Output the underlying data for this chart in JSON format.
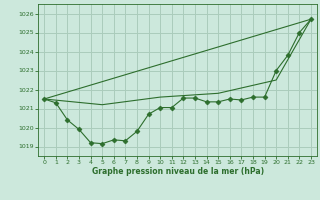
{
  "title": "Graphe pression niveau de la mer (hPa)",
  "bg_color": "#cce8dc",
  "grid_color": "#aaccbb",
  "line_color": "#2d6e2d",
  "xlim": [
    -0.5,
    23.5
  ],
  "ylim": [
    1018.5,
    1026.5
  ],
  "yticks": [
    1019,
    1020,
    1021,
    1022,
    1023,
    1024,
    1025,
    1026
  ],
  "xticks": [
    0,
    1,
    2,
    3,
    4,
    5,
    6,
    7,
    8,
    9,
    10,
    11,
    12,
    13,
    14,
    15,
    16,
    17,
    18,
    19,
    20,
    21,
    22,
    23
  ],
  "series": [
    {
      "x": [
        0,
        1,
        2,
        3,
        4,
        5,
        6,
        7,
        8,
        9,
        10,
        11,
        12,
        13,
        14,
        15,
        16,
        17,
        18,
        19,
        20,
        21,
        22,
        23
      ],
      "y": [
        1021.5,
        1021.3,
        1020.4,
        1019.9,
        1019.2,
        1019.15,
        1019.35,
        1019.3,
        1019.8,
        1020.7,
        1021.05,
        1021.05,
        1021.55,
        1021.55,
        1021.35,
        1021.35,
        1021.5,
        1021.45,
        1021.6,
        1021.6,
        1023.0,
        1023.8,
        1025.0,
        1025.7
      ],
      "marker": "D",
      "markersize": 2.5
    },
    {
      "x": [
        0,
        23
      ],
      "y": [
        1021.5,
        1025.7
      ],
      "marker": null,
      "markersize": 0
    },
    {
      "x": [
        0,
        5,
        10,
        15,
        20,
        23
      ],
      "y": [
        1021.5,
        1021.2,
        1021.6,
        1021.8,
        1022.5,
        1025.7
      ],
      "marker": null,
      "markersize": 0
    }
  ]
}
